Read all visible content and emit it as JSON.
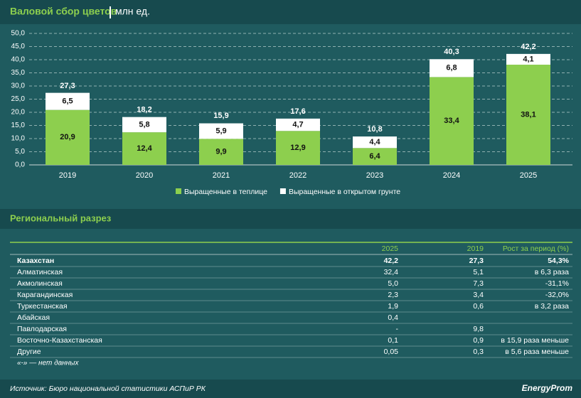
{
  "chart_data": {
    "type": "stacked_bar",
    "title": "Валовой сбор цветов",
    "subtitle": "млн ед.",
    "categories": [
      "2019",
      "2020",
      "2021",
      "2022",
      "2023",
      "2024",
      "2025"
    ],
    "series": [
      {
        "name": "Выращенные в теплице",
        "color": "#8dcf4e",
        "values": [
          20.9,
          12.4,
          9.9,
          12.9,
          6.4,
          33.4,
          38.1
        ],
        "value_labels": [
          "20,9",
          "12,4",
          "9,9",
          "12,9",
          "6,4",
          "33,4",
          "38,1"
        ]
      },
      {
        "name": "Выращенные в открытом грунте",
        "color": "#ffffff",
        "values": [
          6.5,
          5.8,
          5.9,
          4.7,
          4.4,
          6.8,
          4.1
        ],
        "value_labels": [
          "6,5",
          "5,8",
          "5,9",
          "4,7",
          "4,4",
          "6,8",
          "4,1"
        ]
      }
    ],
    "totals": {
      "values": [
        27.3,
        18.2,
        15.9,
        17.6,
        10.8,
        40.3,
        42.2
      ],
      "value_labels": [
        "27,3",
        "18,2",
        "15,9",
        "17,6",
        "10,8",
        "40,3",
        "42,2"
      ]
    },
    "ylim": [
      0,
      50
    ],
    "yticks": [
      {
        "value": 0,
        "label": "0,0"
      },
      {
        "value": 5,
        "label": "5,0"
      },
      {
        "value": 10,
        "label": "10,0"
      },
      {
        "value": 15,
        "label": "15,0"
      },
      {
        "value": 20,
        "label": "20,0"
      },
      {
        "value": 25,
        "label": "25,0"
      },
      {
        "value": 30,
        "label": "30,0"
      },
      {
        "value": 35,
        "label": "35,0"
      },
      {
        "value": 40,
        "label": "40,0"
      },
      {
        "value": 45,
        "label": "45,0"
      },
      {
        "value": 50,
        "label": "50,0"
      }
    ],
    "grid": true
  },
  "section_title": "Региональный разрез",
  "table": {
    "header": [
      null,
      "2025",
      "2019",
      "Рост за период (%)"
    ],
    "rows": [
      [
        "Казахстан",
        "42,2",
        "27,3",
        "54,3%"
      ],
      [
        "Алматинская",
        "32,4",
        "5,1",
        "в 6,3 раза"
      ],
      [
        "Акмолинская",
        "5,0",
        "7,3",
        "-31,1%"
      ],
      [
        "Карагандинская",
        "2,3",
        "3,4",
        "-32,0%"
      ],
      [
        "Туркестанская",
        "1,9",
        "0,6",
        "в 3,2 раза"
      ],
      [
        "Абайская",
        "0,4",
        null,
        null
      ],
      [
        "Павлодарская",
        "-",
        "9,8",
        null
      ],
      [
        "Восточно-Казахстанская",
        "0,1",
        "0,9",
        "в 15,9 раза меньше"
      ],
      [
        "Другие",
        "0,05",
        "0,3",
        "в 5,6 раза меньше"
      ]
    ]
  },
  "note": "«-» — нет данных",
  "source": "Источник: Бюро национальной статистики АСПиР РК",
  "logo": "EnergyProm"
}
